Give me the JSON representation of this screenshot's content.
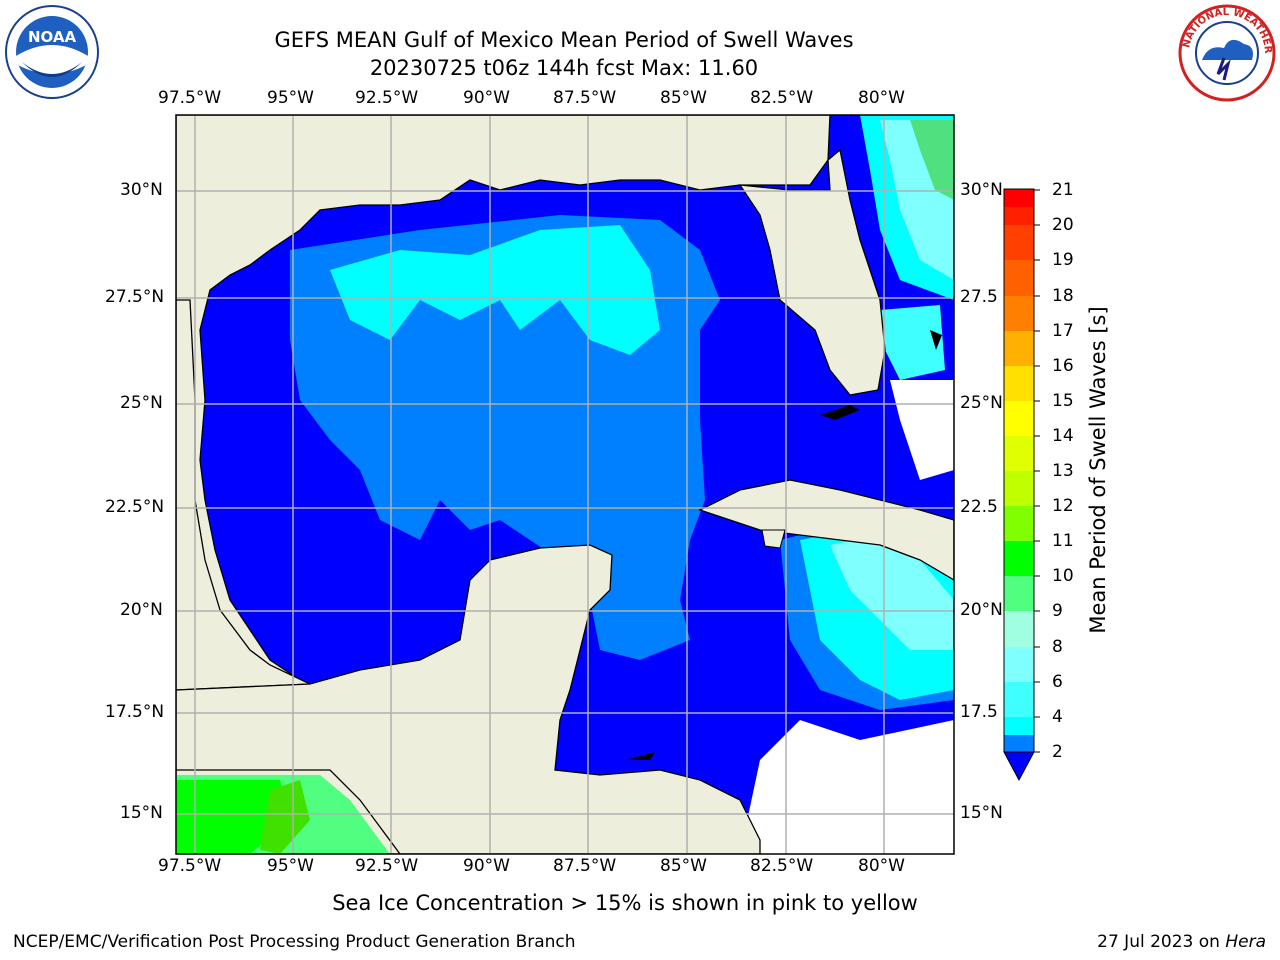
{
  "header": {
    "title": "GEFS MEAN Gulf of Mexico Mean Period of Swell Waves",
    "subtitle": "20230725 t06z 144h fcst   Max: 11.60"
  },
  "map": {
    "lon_labels": [
      "97.5°W",
      "95°W",
      "92.5°W",
      "90°W",
      "87.5°W",
      "85°W",
      "82.5°W",
      "80°W"
    ],
    "lat_labels_left": [
      "30°N",
      "27.5°N",
      "25°N",
      "22.5°N",
      "20°N",
      "17.5°N",
      "15°N"
    ],
    "lat_labels_right": [
      "30°N",
      "27.5",
      "25°N",
      "22.5",
      "20°N",
      "17.5",
      "15°N"
    ],
    "land_color": "#eeeedc",
    "grid_color": "#b0b0b0"
  },
  "colorbar": {
    "label": "Mean Period of Swell Waves [s]",
    "ticks": [
      "21",
      "20",
      "19",
      "18",
      "17",
      "16",
      "15",
      "14",
      "13",
      "12",
      "11",
      "10",
      "9",
      "8",
      "6",
      "4",
      "2"
    ],
    "colors": [
      "#0000ff",
      "#0080ff",
      "#00ffff",
      "#40ffff",
      "#80ffff",
      "#a0ffe0",
      "#50ff80",
      "#00ff00",
      "#40e000",
      "#80ff00",
      "#c0ff00",
      "#e0ff00",
      "#ffff00",
      "#ffe000",
      "#ffb000",
      "#ff8000",
      "#ff5000",
      "#ff2000",
      "#ff0000"
    ]
  },
  "notes": {
    "ice_note": "Sea Ice Concentration > 15% is shown in pink to yellow"
  },
  "footer": {
    "left": "NCEP/EMC/Verification Post Processing Product Generation Branch",
    "date": "27 Jul 2023 on ",
    "host": "Hera"
  },
  "logos": {
    "left": "NOAA",
    "right": "NATIONAL WEATHER SERVICE"
  }
}
